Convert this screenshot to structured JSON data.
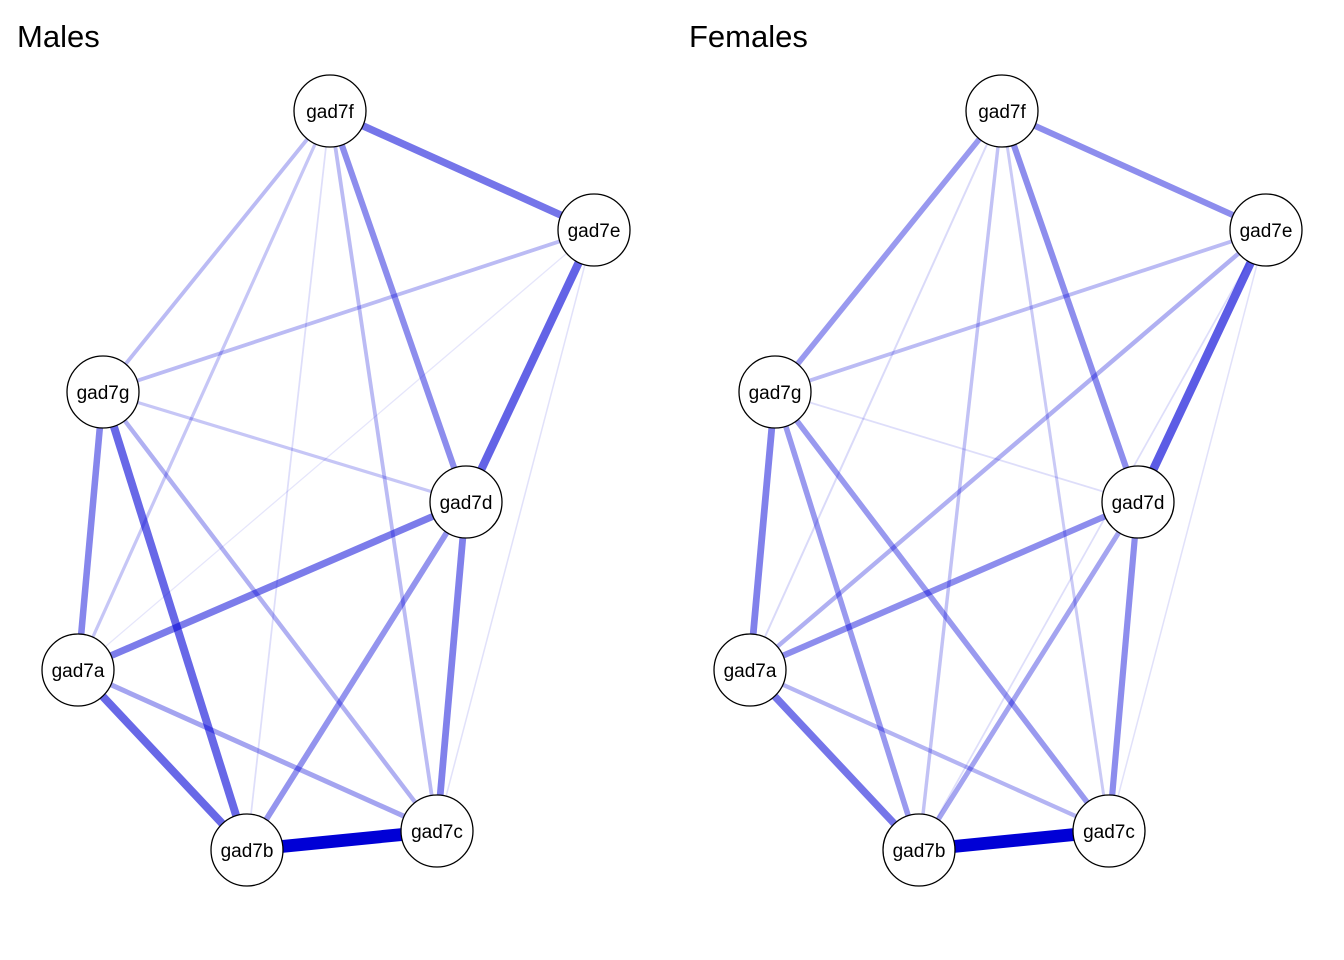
{
  "colors": {
    "edge": "#0000d6",
    "node_fill": "#ffffff",
    "node_stroke": "#000000"
  },
  "chart_data": [
    {
      "type": "network",
      "title": "Males",
      "nodes": [
        "gad7f",
        "gad7e",
        "gad7g",
        "gad7d",
        "gad7a",
        "gad7c",
        "gad7b"
      ],
      "edges": [
        {
          "from": "gad7b",
          "to": "gad7c",
          "weight": 1.0
        },
        {
          "from": "gad7e",
          "to": "gad7d",
          "weight": 0.62
        },
        {
          "from": "gad7g",
          "to": "gad7b",
          "weight": 0.6
        },
        {
          "from": "gad7a",
          "to": "gad7b",
          "weight": 0.6
        },
        {
          "from": "gad7f",
          "to": "gad7e",
          "weight": 0.55
        },
        {
          "from": "gad7a",
          "to": "gad7d",
          "weight": 0.52
        },
        {
          "from": "gad7d",
          "to": "gad7c",
          "weight": 0.5
        },
        {
          "from": "gad7g",
          "to": "gad7a",
          "weight": 0.48
        },
        {
          "from": "gad7f",
          "to": "gad7d",
          "weight": 0.45
        },
        {
          "from": "gad7d",
          "to": "gad7b",
          "weight": 0.42
        },
        {
          "from": "gad7a",
          "to": "gad7c",
          "weight": 0.35
        },
        {
          "from": "gad7g",
          "to": "gad7c",
          "weight": 0.3
        },
        {
          "from": "gad7f",
          "to": "gad7g",
          "weight": 0.25
        },
        {
          "from": "gad7g",
          "to": "gad7e",
          "weight": 0.25
        },
        {
          "from": "gad7f",
          "to": "gad7c",
          "weight": 0.25
        },
        {
          "from": "gad7g",
          "to": "gad7d",
          "weight": 0.2
        },
        {
          "from": "gad7f",
          "to": "gad7a",
          "weight": 0.2
        },
        {
          "from": "gad7f",
          "to": "gad7b",
          "weight": 0.08
        },
        {
          "from": "gad7e",
          "to": "gad7c",
          "weight": 0.06
        },
        {
          "from": "gad7e",
          "to": "gad7a",
          "weight": 0.04
        }
      ]
    },
    {
      "type": "network",
      "title": "Females",
      "nodes": [
        "gad7f",
        "gad7e",
        "gad7g",
        "gad7d",
        "gad7a",
        "gad7c",
        "gad7b"
      ],
      "edges": [
        {
          "from": "gad7b",
          "to": "gad7c",
          "weight": 1.0
        },
        {
          "from": "gad7e",
          "to": "gad7d",
          "weight": 0.65
        },
        {
          "from": "gad7a",
          "to": "gad7b",
          "weight": 0.55
        },
        {
          "from": "gad7g",
          "to": "gad7a",
          "weight": 0.5
        },
        {
          "from": "gad7f",
          "to": "gad7d",
          "weight": 0.45
        },
        {
          "from": "gad7f",
          "to": "gad7e",
          "weight": 0.45
        },
        {
          "from": "gad7a",
          "to": "gad7d",
          "weight": 0.45
        },
        {
          "from": "gad7d",
          "to": "gad7c",
          "weight": 0.45
        },
        {
          "from": "gad7g",
          "to": "gad7b",
          "weight": 0.4
        },
        {
          "from": "gad7g",
          "to": "gad7c",
          "weight": 0.4
        },
        {
          "from": "gad7f",
          "to": "gad7g",
          "weight": 0.4
        },
        {
          "from": "gad7d",
          "to": "gad7b",
          "weight": 0.35
        },
        {
          "from": "gad7e",
          "to": "gad7a",
          "weight": 0.3
        },
        {
          "from": "gad7a",
          "to": "gad7c",
          "weight": 0.28
        },
        {
          "from": "gad7g",
          "to": "gad7e",
          "weight": 0.25
        },
        {
          "from": "gad7f",
          "to": "gad7b",
          "weight": 0.22
        },
        {
          "from": "gad7f",
          "to": "gad7c",
          "weight": 0.18
        },
        {
          "from": "gad7f",
          "to": "gad7a",
          "weight": 0.1
        },
        {
          "from": "gad7e",
          "to": "gad7b",
          "weight": 0.08
        },
        {
          "from": "gad7g",
          "to": "gad7d",
          "weight": 0.08
        },
        {
          "from": "gad7e",
          "to": "gad7c",
          "weight": 0.06
        }
      ]
    }
  ]
}
